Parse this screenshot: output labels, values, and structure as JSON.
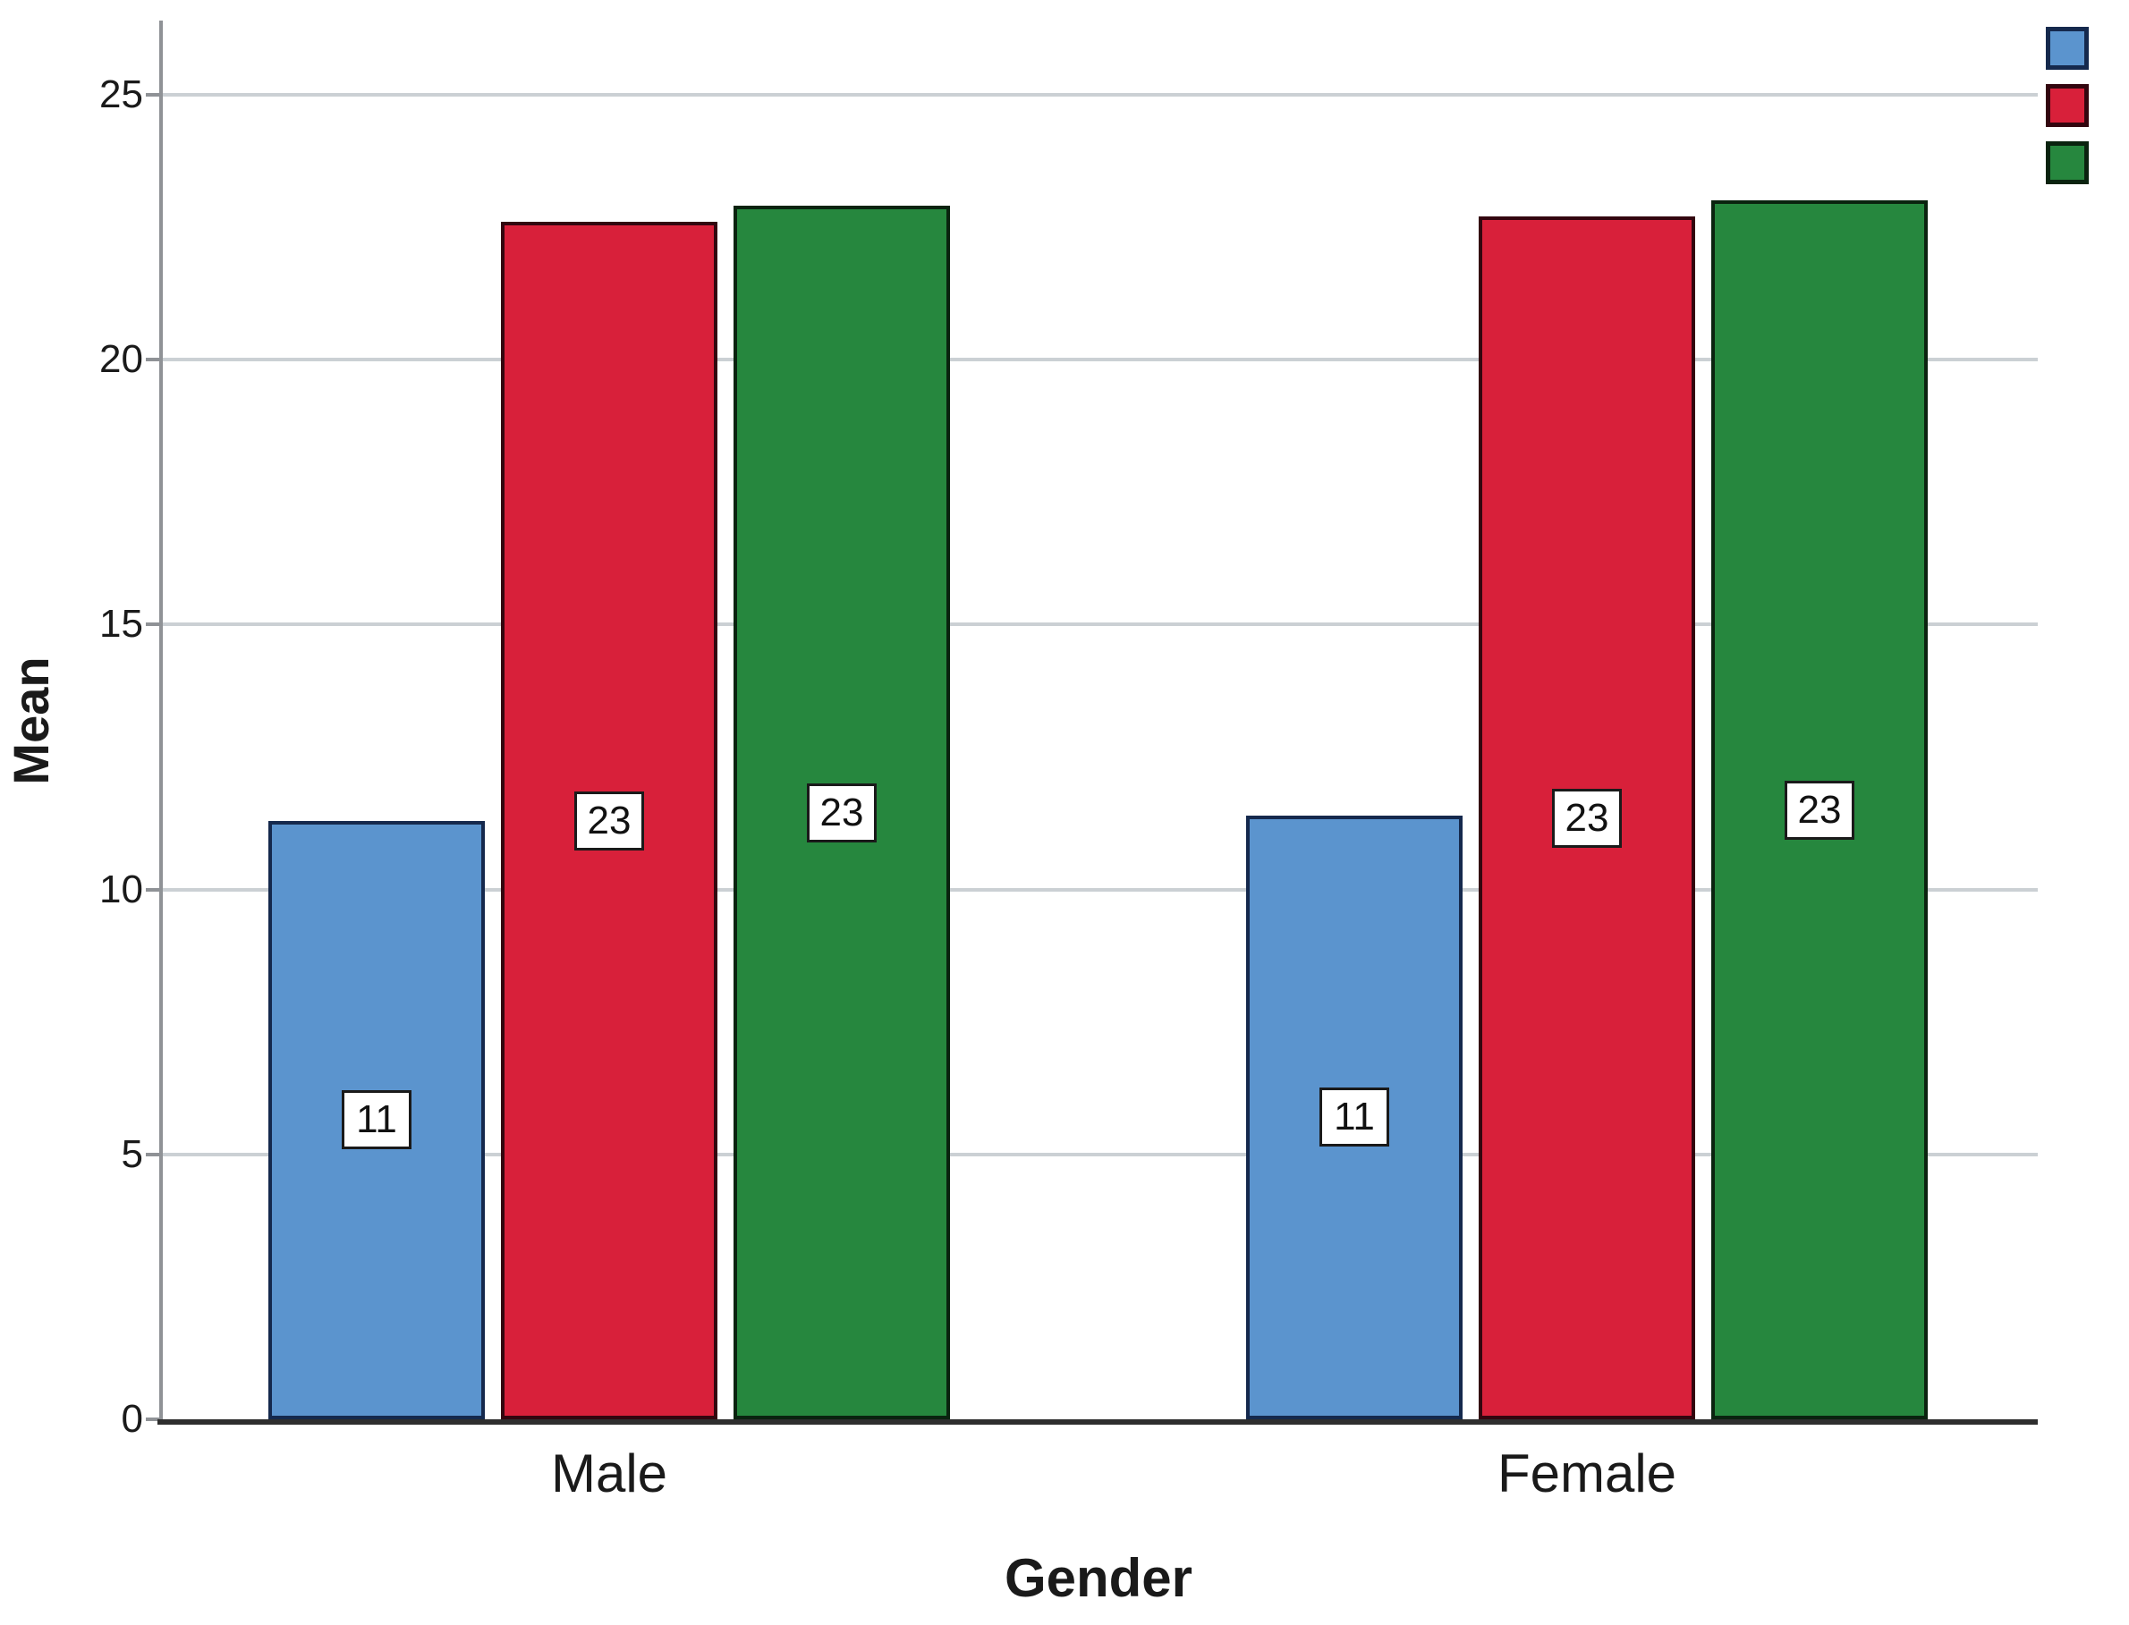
{
  "chart_data": {
    "type": "bar",
    "title": "",
    "xlabel": "Gender",
    "ylabel": "Mean",
    "categories": [
      "Male",
      "Female"
    ],
    "series": [
      {
        "name": "blue",
        "color": "#5B94CE",
        "border_color": "#15294D",
        "values": [
          11.3,
          11.4
        ],
        "bar_labels": [
          "11",
          "11"
        ]
      },
      {
        "name": "red",
        "color": "#D8203A",
        "border_color": "#33060F",
        "values": [
          22.6,
          22.7
        ],
        "bar_labels": [
          "23",
          "23"
        ]
      },
      {
        "name": "green",
        "color": "#26873E",
        "border_color": "#0A230F",
        "values": [
          22.9,
          23.0
        ],
        "bar_labels": [
          "23",
          "23"
        ]
      }
    ],
    "yticks": [
      0,
      5,
      10,
      15,
      20,
      25
    ],
    "ylim": [
      0,
      26.4
    ],
    "grid": true,
    "legend_position": "top-right"
  },
  "colors": {
    "gridline": "#CBD0D4",
    "y_axis_line": "#8F9296",
    "x_axis_line": "#2E2E2E",
    "text": "#1A1A1A",
    "label_box_bg": "#FFFFFF",
    "label_box_border": "#1A1A1A"
  }
}
